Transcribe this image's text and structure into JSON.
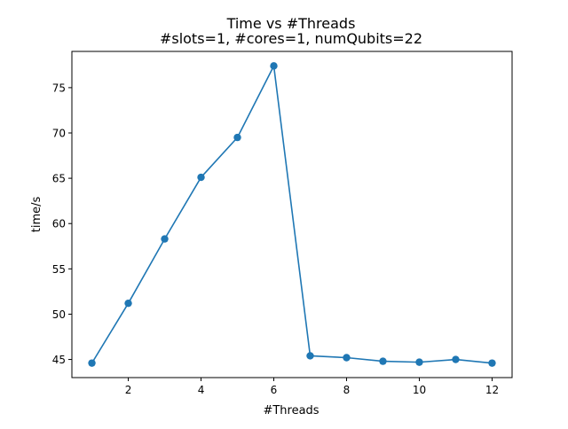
{
  "chart_data": {
    "type": "line",
    "title": "Time vs #Threads",
    "subtitle": "#slots=1, #cores=1, numQubits=22",
    "xlabel": "#Threads",
    "ylabel": "time/s",
    "x": [
      1,
      2,
      3,
      4,
      5,
      6,
      7,
      8,
      9,
      10,
      11,
      12
    ],
    "series": [
      {
        "values": [
          44.6,
          51.2,
          58.3,
          65.1,
          69.5,
          77.4,
          45.4,
          45.2,
          44.8,
          44.7,
          45.0,
          44.6
        ],
        "color": "#1f77b4",
        "marker": "circle"
      }
    ],
    "xlim": [
      0.45,
      12.55
    ],
    "ylim": [
      43.0,
      79.0
    ],
    "xticks": [
      2,
      4,
      6,
      8,
      10,
      12
    ],
    "yticks": [
      45,
      50,
      55,
      60,
      65,
      70,
      75
    ],
    "grid": false,
    "legend": "none"
  }
}
